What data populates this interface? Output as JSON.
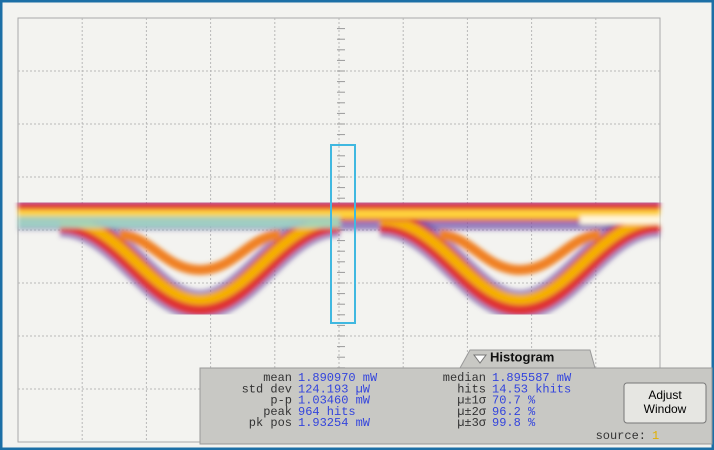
{
  "histogram": {
    "title": "Histogram",
    "left_stats": [
      {
        "label": "mean",
        "value": "1.890970 mW"
      },
      {
        "label": "std dev",
        "value": "124.193 µW"
      },
      {
        "label": "p-p",
        "value": "1.03460 mW"
      },
      {
        "label": "peak",
        "value": "964 hits"
      },
      {
        "label": "pk pos",
        "value": "1.93254 mW"
      }
    ],
    "right_stats": [
      {
        "label": "median",
        "value": "1.895587 mW"
      },
      {
        "label": "hits",
        "value": "14.53 khits"
      },
      {
        "label": "µ±1σ",
        "value": "70.7 %"
      },
      {
        "label": "µ±2σ",
        "value": "96.2 %"
      },
      {
        "label": "µ±3σ",
        "value": "99.8 %"
      }
    ]
  },
  "button": [
    "Adjust",
    "Window"
  ],
  "source": {
    "label": "source:",
    "value": "1"
  }
}
